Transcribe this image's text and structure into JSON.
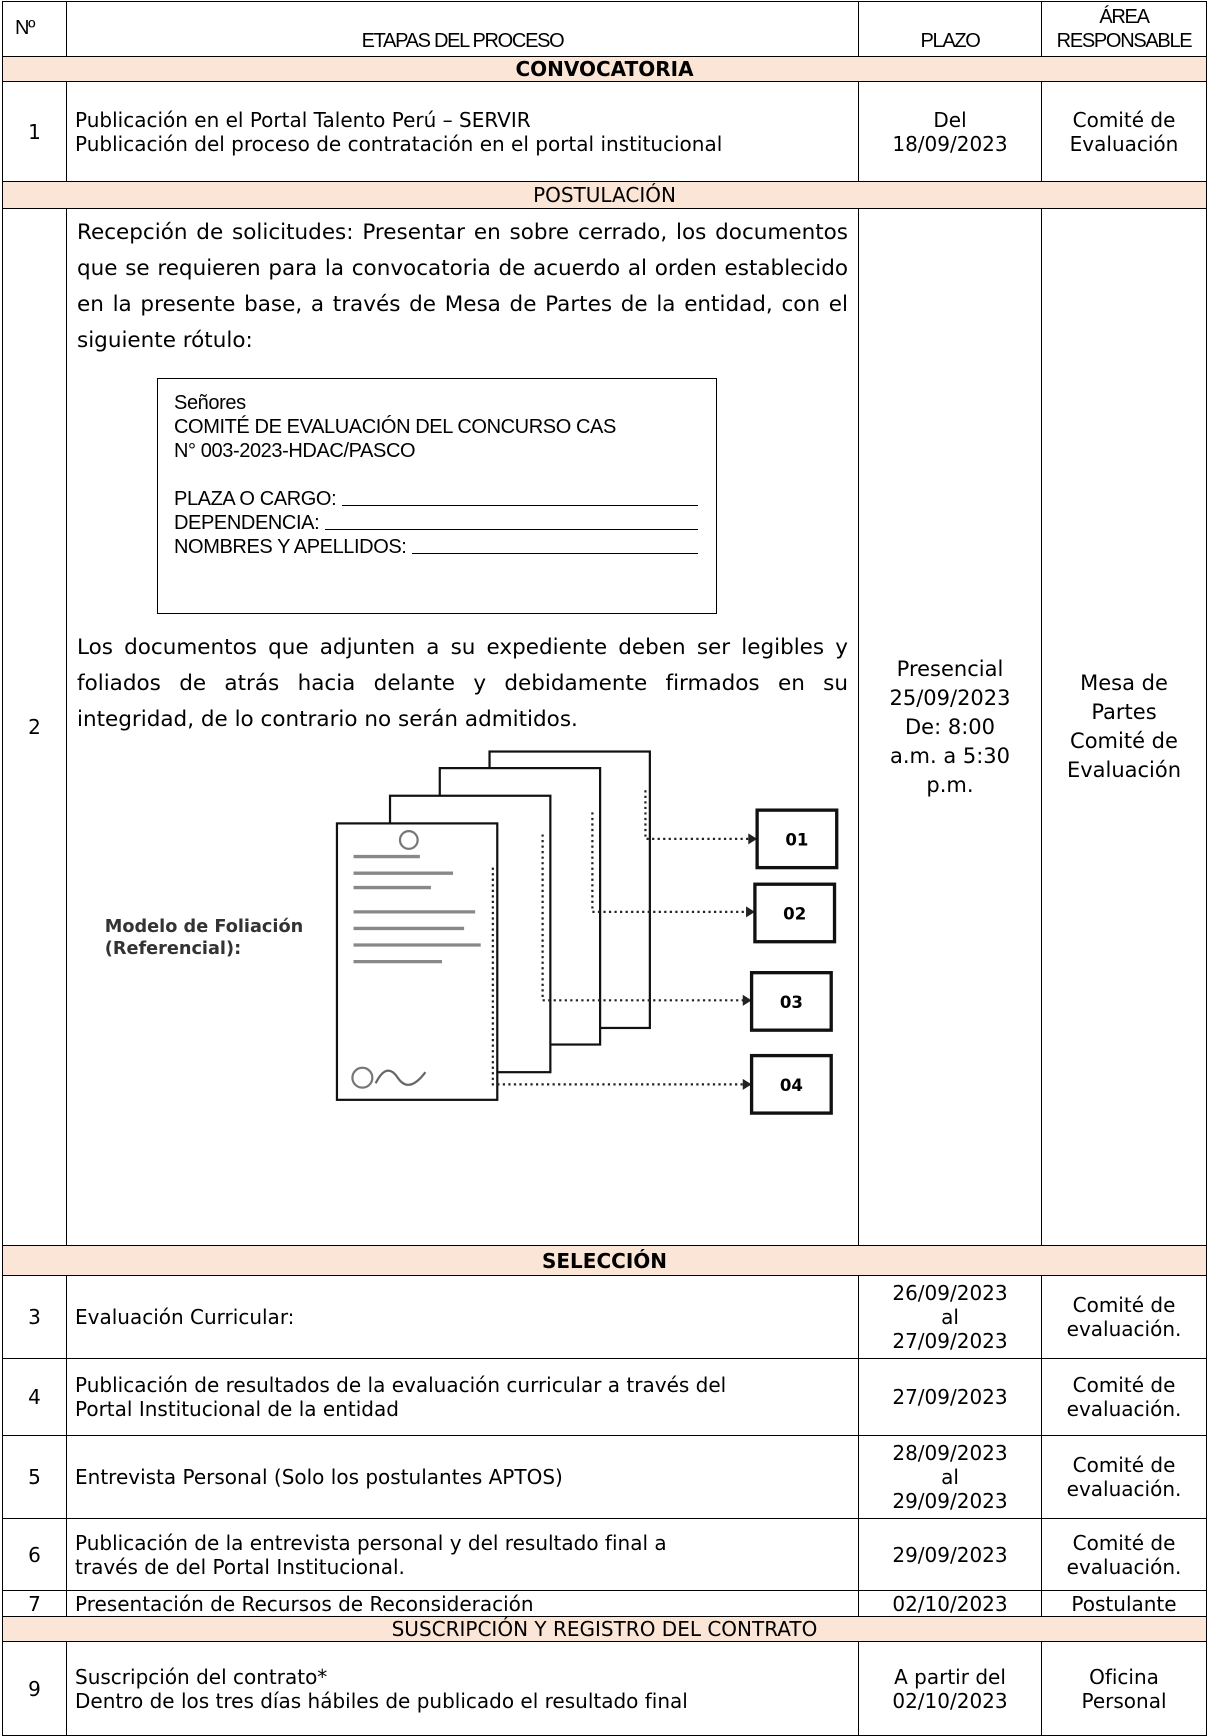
{
  "header": {
    "number": "Nº",
    "stage": "ETAPAS DEL PROCESO",
    "term": "PLAZO",
    "area": [
      "ÁREA",
      "RESPONSABLE"
    ]
  },
  "sections": [
    {
      "title": "CONVOCATORIA",
      "rows": [
        {
          "number": "1",
          "stage": [
            "Publicación en el Portal Talento Perú – SERVIR",
            "Publicación del proceso de contratación en el portal institucional"
          ],
          "term": [
            "Del",
            "18/09/2023"
          ],
          "area": [
            "Comité de",
            "Evaluación"
          ]
        }
      ]
    },
    {
      "title": "POSTULACIÓN",
      "rows": [
        {
          "number": "2",
          "stage": {
            "intro": "Recepción de solicitudes: Presentar en sobre cerrado, los documentos que se requieren para la convocatoria de acuerdo al orden establecido en la presente base, a través de Mesa de Partes de la entidad, con el siguiente rótulo:",
            "label": {
              "lines": [
                "Señores",
                "COMITÉ DE EVALUACIÓN DEL CONCURSO CAS",
                "N° 003-2023-HDAC/PASCO"
              ],
              "fields": [
                "PLAZA O CARGO:",
                "DEPENDENCIA:",
                "NOMBRES Y APELLIDOS:"
              ]
            },
            "note": "Los documentos que adjunten a su expediente deben ser legibles y foliados de atrás hacia delante y debidamente firmados en su integridad, de lo contrario no serán admitidos.",
            "figure": {
              "caption": [
                "Modelo de Foliación",
                "(Referencial):"
              ],
              "folios": [
                "01",
                "02",
                "03",
                "04"
              ]
            }
          },
          "term": [
            "Presencial",
            "25/09/2023",
            "De: 8:00",
            "a.m. a 5:30",
            "p.m."
          ],
          "area": [
            "Mesa de",
            "Partes",
            "Comité de",
            "Evaluación"
          ]
        }
      ]
    },
    {
      "title": "SELECCIÓN",
      "rows": [
        {
          "number": "3",
          "stage": [
            "Evaluación Curricular:"
          ],
          "term": [
            "26/09/2023",
            "al",
            "27/09/2023"
          ],
          "area": [
            "Comité de",
            "evaluación."
          ]
        },
        {
          "number": "4",
          "stage": [
            "Publicación de resultados de la evaluación curricular a través del",
            "Portal Institucional de la entidad"
          ],
          "term": [
            "27/09/2023"
          ],
          "area": [
            "Comité de",
            "evaluación."
          ]
        },
        {
          "number": "5",
          "stage": [
            "Entrevista Personal (Solo los postulantes APTOS)"
          ],
          "term": [
            "28/09/2023",
            "al",
            "29/09/2023"
          ],
          "area": [
            "Comité de",
            "evaluación."
          ]
        },
        {
          "number": "6",
          "stage": [
            "Publicación de la entrevista personal y del resultado final a",
            "través de del Portal Institucional."
          ],
          "term": [
            "29/09/2023"
          ],
          "area": [
            "Comité de",
            "evaluación."
          ]
        },
        {
          "number": "7",
          "stage": [
            "Presentación de Recursos de Reconsideración"
          ],
          "term": [
            "02/10/2023"
          ],
          "area": [
            "Postulante"
          ]
        }
      ]
    },
    {
      "title": "SUSCRIPCIÓN Y REGISTRO DEL CONTRATO",
      "rows": [
        {
          "number": "9",
          "stage": [
            "Suscripción del contrato*",
            "Dentro de los tres días hábiles de publicado el resultado final"
          ],
          "term": [
            "A partir del",
            "02/10/2023"
          ],
          "area": [
            "Oficina",
            "Personal"
          ]
        }
      ]
    }
  ]
}
